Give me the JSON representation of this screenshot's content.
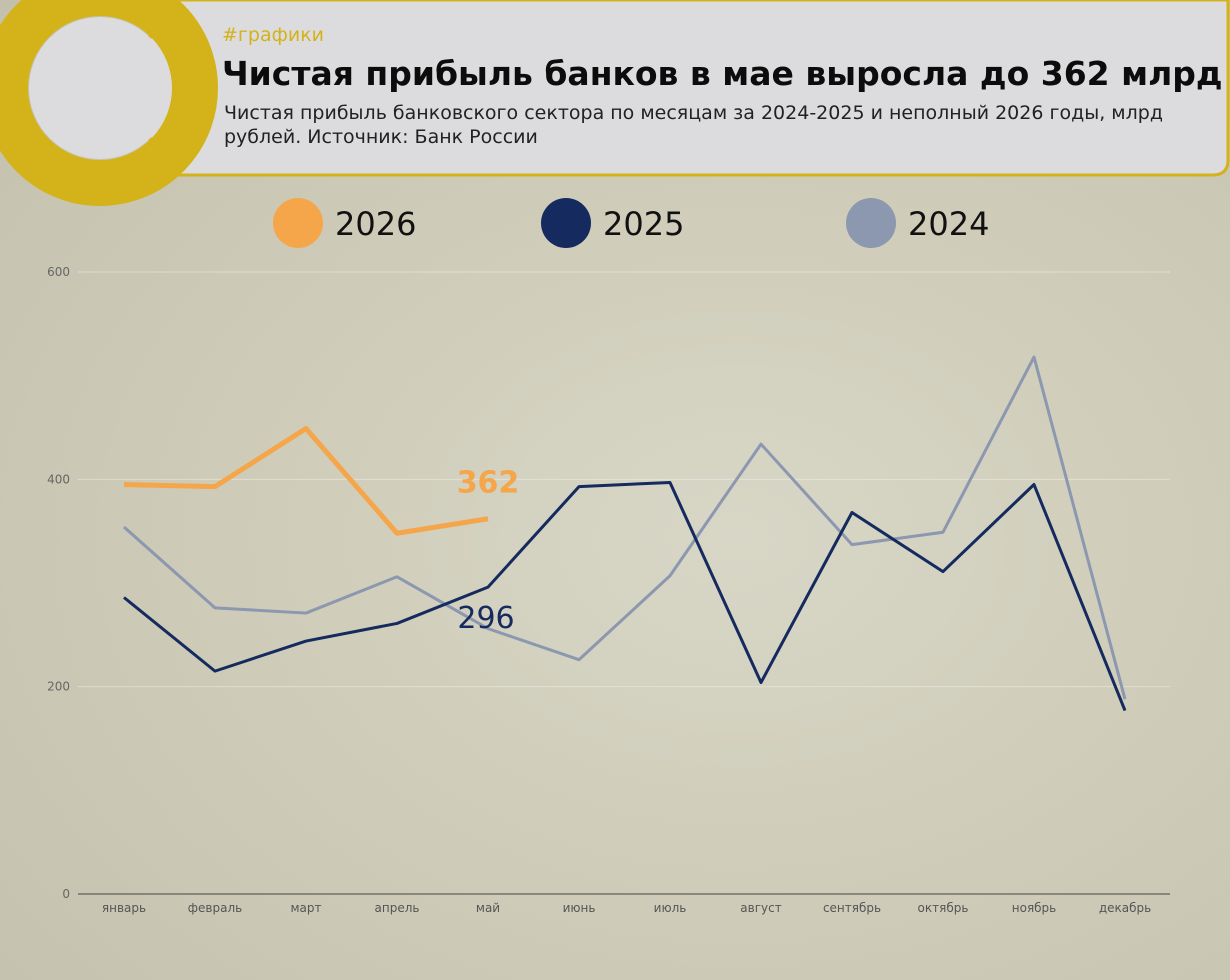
{
  "chart_data": {
    "type": "line",
    "tag": "#графики",
    "title": "Чистая прибыль банков в мае выросла до 362 млрд",
    "subtitle": "Чистая прибыль банковского сектора по месяцам за 2024-2025 и неполный 2026 годы, млрд рублей. Источник: Банк России",
    "categories": [
      "январь",
      "февраль",
      "март",
      "апрель",
      "май",
      "июнь",
      "июль",
      "август",
      "сентябрь",
      "октябрь",
      "ноябрь",
      "декабрь"
    ],
    "series": [
      {
        "name": "2026",
        "color": "#f5a54a",
        "values": [
          395,
          393,
          449,
          348,
          362,
          null,
          null,
          null,
          null,
          null,
          null,
          null
        ]
      },
      {
        "name": "2025",
        "color": "#152a5e",
        "values": [
          286,
          215,
          244,
          261,
          296,
          393,
          397,
          204,
          368,
          311,
          395,
          177
        ]
      },
      {
        "name": "2024",
        "color": "#8c97b0",
        "values": [
          354,
          276,
          271,
          306,
          256,
          226,
          307,
          434,
          337,
          349,
          518,
          188
        ]
      }
    ],
    "ylim": [
      0,
      600
    ],
    "yticks": [
      0,
      200,
      400,
      600
    ],
    "grid": true
  }
}
